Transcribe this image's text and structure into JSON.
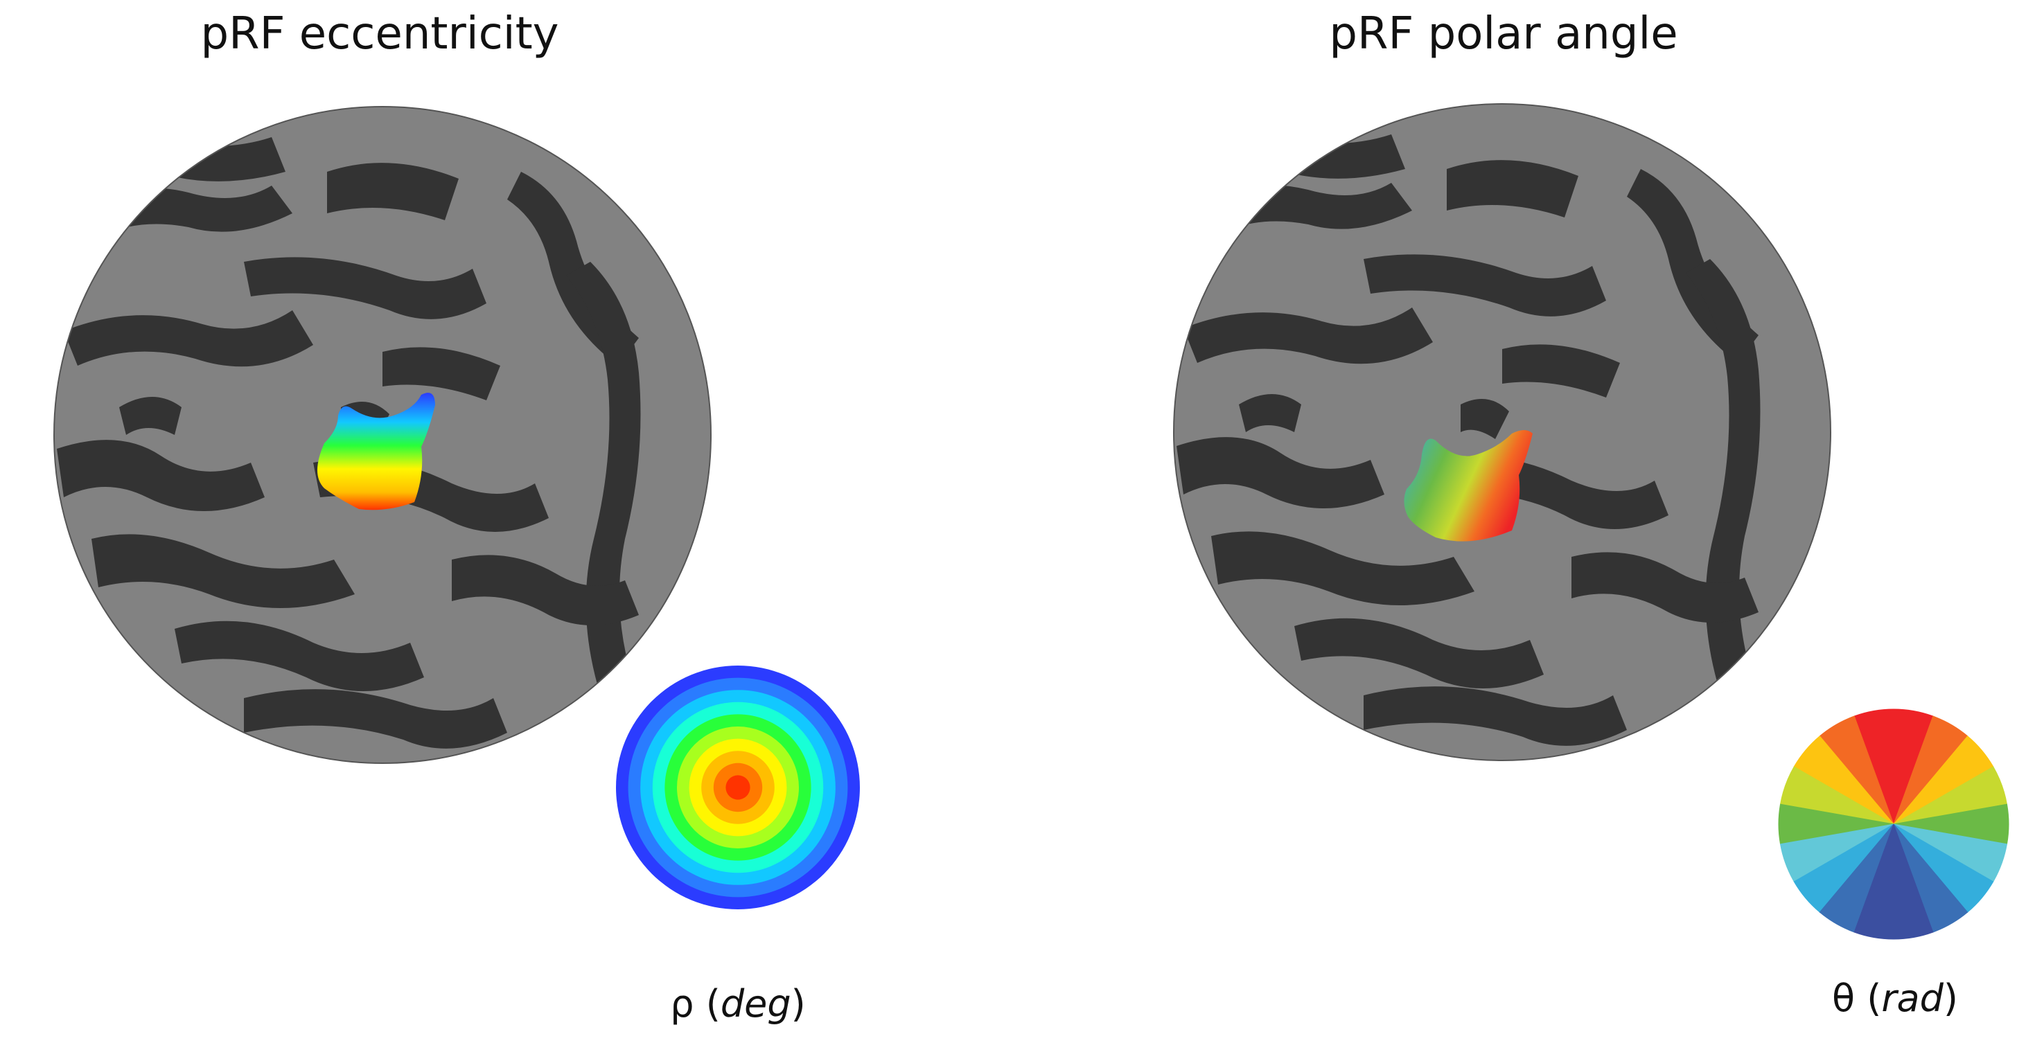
{
  "left_panel": {
    "title": "pRF eccentricity",
    "legend_symbol": "ρ",
    "legend_unit": "deg",
    "legend_colors": [
      "#2b3cff",
      "#2a7cff",
      "#12c8ff",
      "#18ffd6",
      "#28ff3a",
      "#a8ff1e",
      "#fff600",
      "#ffbe00",
      "#ff7a00",
      "#ff3300"
    ]
  },
  "right_panel": {
    "title": "pRF polar angle",
    "legend_symbol": "θ",
    "legend_unit": "rad",
    "legend_colors": [
      "#ee2327",
      "#f36a23",
      "#fdc411",
      "#c7d92f",
      "#6bba46",
      "#62c8d8",
      "#34aedc",
      "#3a6fb5",
      "#3b4fa0"
    ]
  },
  "colors": {
    "sulci": "#333333",
    "gyri": "#828282",
    "background": "#ffffff"
  }
}
